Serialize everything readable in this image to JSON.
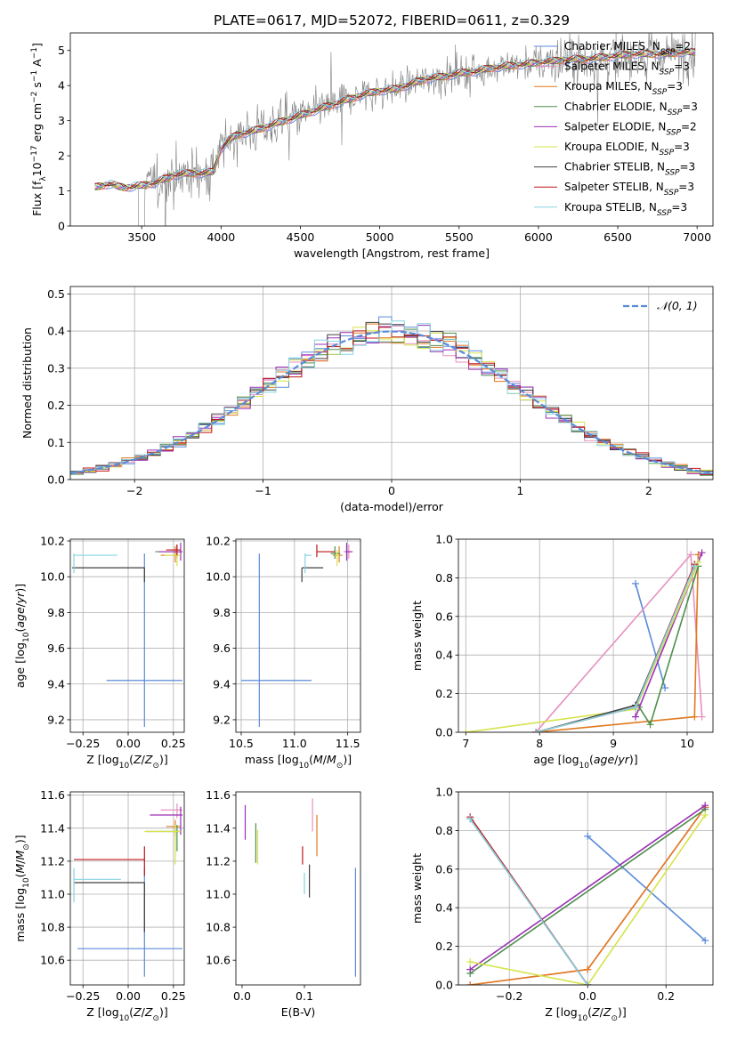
{
  "figure_title": "PLATE=0617, MJD=52072, FIBERID=0611, z=0.329",
  "colors": {
    "Chabrier MILES": "#5b8bd9",
    "Salpeter MILES": "#e88fbf",
    "Kroupa MILES": "#e07a1f",
    "Chabrier ELODIE": "#4e8f4b",
    "Salpeter ELODIE": "#9b2fb7",
    "Kroupa ELODIE": "#d6e34a",
    "Chabrier STELIB": "#404040",
    "Salpeter STELIB": "#c0161a",
    "Kroupa STELIB": "#86d3e0",
    "data": "#808080",
    "normal": "#5b8bd9"
  },
  "chart_data": [
    {
      "id": "spectrum",
      "type": "line",
      "title": "PLATE=0617, MJD=52072, FIBERID=0611, z=0.329",
      "xlabel": "wavelength [Angstrom, rest frame]",
      "ylabel": "Flux [f_λ 10^-17 erg cm^-2 s^-1 A^-1]",
      "xlim": [
        3050,
        7100
      ],
      "ylim": [
        0,
        5.5
      ],
      "xticks": [
        3500,
        4000,
        4500,
        5000,
        5500,
        6000,
        6500,
        7000
      ],
      "yticks": [
        0,
        1,
        2,
        3,
        4,
        5
      ],
      "legend_position": "upper right",
      "legend": [
        {
          "label": "Chabrier MILES, N",
          "sub": "SSP",
          "tail": "=2"
        },
        {
          "label": "Salpeter MILES, N",
          "sub": "SSP",
          "tail": "=3"
        },
        {
          "label": "Kroupa MILES, N",
          "sub": "SSP",
          "tail": "=3"
        },
        {
          "label": "Chabrier ELODIE, N",
          "sub": "SSP",
          "tail": "=3"
        },
        {
          "label": "Salpeter ELODIE, N",
          "sub": "SSP",
          "tail": "=2"
        },
        {
          "label": "Kroupa ELODIE, N",
          "sub": "SSP",
          "tail": "=3"
        },
        {
          "label": "Chabrier STELIB, N",
          "sub": "SSP",
          "tail": "=3"
        },
        {
          "label": "Salpeter STELIB, N",
          "sub": "SSP",
          "tail": "=3"
        },
        {
          "label": "Kroupa STELIB, N",
          "sub": "SSP",
          "tail": "=3"
        }
      ],
      "model_continuum": {
        "x": [
          3200,
          3250,
          3300,
          3350,
          3400,
          3500,
          3600,
          3700,
          3800,
          3900,
          3950,
          4000,
          4050,
          4100,
          4200,
          4300,
          4400,
          4500,
          4600,
          4700,
          4800,
          4900,
          5000,
          5100,
          5200,
          5300,
          5400,
          5500,
          5600,
          5700,
          5800,
          5900,
          6000,
          6100,
          6200,
          6300,
          6400,
          6500,
          6600,
          6700,
          6800,
          6900,
          7000
        ],
        "y": [
          1.1,
          1.15,
          1.2,
          1.12,
          1.1,
          1.15,
          1.25,
          1.45,
          1.5,
          1.5,
          1.55,
          2.2,
          2.45,
          2.6,
          2.7,
          2.85,
          3.0,
          3.15,
          3.3,
          3.45,
          3.6,
          3.75,
          3.85,
          3.9,
          4.05,
          4.2,
          4.25,
          4.35,
          4.4,
          4.5,
          4.55,
          4.6,
          4.65,
          4.7,
          4.75,
          4.75,
          4.8,
          4.85,
          4.9,
          4.9,
          4.9,
          4.95,
          4.95
        ]
      }
    },
    {
      "id": "residuals",
      "type": "histogram",
      "xlabel": "(data-model)/error",
      "ylabel": "Normed distribution",
      "xlim": [
        -2.5,
        2.5
      ],
      "ylim": [
        0,
        0.52
      ],
      "xticks": [
        -2,
        -1,
        0,
        1,
        2
      ],
      "yticks": [
        0.0,
        0.1,
        0.2,
        0.3,
        0.4,
        0.5
      ],
      "grid": true,
      "legend_position": "upper right",
      "normal_label": "𝒩(0, 1)",
      "bin_width": 0.1
    },
    {
      "id": "age_vs_Z",
      "type": "scatter",
      "xlabel": "Z [log10(Z/Z⊙)]",
      "ylabel": "age [log10(age/yr)]",
      "xlim": [
        -0.32,
        0.31
      ],
      "ylim": [
        9.13,
        10.21
      ],
      "xticks": [
        -0.25,
        0.0,
        0.25
      ],
      "yticks": [
        9.2,
        9.4,
        9.6,
        9.8,
        10.0,
        10.2
      ],
      "grid": true,
      "points": [
        {
          "model": "Chabrier MILES",
          "x": 0.09,
          "y": 9.42,
          "xerr": [
            0.21,
            0.21
          ],
          "yerr": [
            0.26,
            0.71
          ]
        },
        {
          "model": "Salpeter MILES",
          "x": 0.27,
          "y": 10.14,
          "xerr": [
            0.02,
            0.03
          ],
          "yerr": [
            0.04,
            0.04
          ]
        },
        {
          "model": "Kroupa MILES",
          "x": 0.26,
          "y": 10.12,
          "xerr": [
            0.08,
            0.02
          ],
          "yerr": [
            0.04,
            0.05
          ]
        },
        {
          "model": "Chabrier ELODIE",
          "x": 0.27,
          "y": 10.14,
          "xerr": [
            0.12,
            0.02
          ],
          "yerr": [
            0.03,
            0.04
          ]
        },
        {
          "model": "Salpeter ELODIE",
          "x": 0.29,
          "y": 10.14,
          "xerr": [
            0.12,
            0.01
          ],
          "yerr": [
            0.05,
            0.05
          ]
        },
        {
          "model": "Kroupa ELODIE",
          "x": 0.27,
          "y": 10.12,
          "xerr": [
            0.07,
            0.02
          ],
          "yerr": [
            0.06,
            0.03
          ]
        },
        {
          "model": "Chabrier STELIB",
          "x": 0.09,
          "y": 10.05,
          "xerr": [
            0.4,
            0.0
          ],
          "yerr": [
            0.08,
            0.0
          ]
        },
        {
          "model": "Salpeter STELIB",
          "x": 0.27,
          "y": 10.15,
          "xerr": [
            0.06,
            0.02
          ],
          "yerr": [
            0.03,
            0.03
          ]
        },
        {
          "model": "Kroupa STELIB",
          "x": -0.3,
          "y": 10.12,
          "xerr": [
            0.0,
            0.24
          ],
          "yerr": [
            0.1,
            0.01
          ]
        }
      ]
    },
    {
      "id": "age_vs_mass",
      "type": "scatter",
      "xlabel": "mass [log10(M/M⊙)]",
      "ylabel": "",
      "xlim": [
        10.45,
        11.62
      ],
      "ylim": [
        9.13,
        10.21
      ],
      "xticks": [
        10.5,
        11.0,
        11.5
      ],
      "yticks": [
        9.2,
        9.4,
        9.6,
        9.8,
        10.0,
        10.2
      ],
      "grid": true,
      "points": [
        {
          "model": "Chabrier MILES",
          "x": 10.67,
          "y": 9.42,
          "xerr": [
            0.17,
            0.49
          ],
          "yerr": [
            0.26,
            0.71
          ]
        },
        {
          "model": "Salpeter MILES",
          "x": 11.51,
          "y": 10.14,
          "xerr": [
            0.05,
            0.04
          ],
          "yerr": [
            0.04,
            0.04
          ]
        },
        {
          "model": "Kroupa MILES",
          "x": 11.42,
          "y": 10.12,
          "xerr": [
            0.06,
            0.03
          ],
          "yerr": [
            0.04,
            0.05
          ]
        },
        {
          "model": "Chabrier ELODIE",
          "x": 11.38,
          "y": 10.13,
          "xerr": [
            0.04,
            0.05
          ],
          "yerr": [
            0.03,
            0.04
          ]
        },
        {
          "model": "Salpeter ELODIE",
          "x": 11.49,
          "y": 10.14,
          "xerr": [
            0.01,
            0.05
          ],
          "yerr": [
            0.05,
            0.05
          ]
        },
        {
          "model": "Kroupa ELODIE",
          "x": 11.4,
          "y": 10.12,
          "xerr": [
            0.02,
            0.02
          ],
          "yerr": [
            0.06,
            0.03
          ]
        },
        {
          "model": "Chabrier STELIB",
          "x": 11.07,
          "y": 10.05,
          "xerr": [
            0.0,
            0.2
          ],
          "yerr": [
            0.08,
            0.0
          ]
        },
        {
          "model": "Salpeter STELIB",
          "x": 11.21,
          "y": 10.14,
          "xerr": [
            0.0,
            0.17
          ],
          "yerr": [
            0.03,
            0.04
          ]
        },
        {
          "model": "Kroupa STELIB",
          "x": 11.1,
          "y": 10.12,
          "xerr": [
            0.0,
            0.06
          ],
          "yerr": [
            0.1,
            0.01
          ]
        }
      ]
    },
    {
      "id": "weight_vs_age",
      "type": "line",
      "xlabel": "age [log10(age/yr)]",
      "ylabel": "mass weight",
      "xlim": [
        6.9,
        10.35
      ],
      "ylim": [
        0,
        1.0
      ],
      "xticks": [
        7,
        8,
        9,
        10
      ],
      "yticks": [
        0.0,
        0.2,
        0.4,
        0.6,
        0.8,
        1.0
      ],
      "grid": true,
      "series": [
        {
          "model": "Chabrier MILES",
          "x": [
            9.3,
            9.7
          ],
          "y": [
            0.77,
            0.23
          ]
        },
        {
          "model": "Salpeter MILES",
          "x": [
            7.95,
            10.05,
            10.2
          ],
          "y": [
            0.0,
            0.92,
            0.08
          ]
        },
        {
          "model": "Kroupa MILES",
          "x": [
            7.95,
            10.1,
            10.15
          ],
          "y": [
            0.0,
            0.08,
            0.92
          ]
        },
        {
          "model": "Chabrier ELODIE",
          "x": [
            9.35,
            9.5,
            10.15
          ],
          "y": [
            0.13,
            0.04,
            0.86
          ]
        },
        {
          "model": "Salpeter ELODIE",
          "x": [
            9.3,
            10.2
          ],
          "y": [
            0.08,
            0.93
          ]
        },
        {
          "model": "Kroupa ELODIE",
          "x": [
            7.0,
            9.3,
            10.15
          ],
          "y": [
            0.0,
            0.12,
            0.88
          ]
        },
        {
          "model": "Chabrier STELIB",
          "x": [
            7.95,
            9.3,
            10.1
          ],
          "y": [
            0.0,
            0.14,
            0.86
          ]
        },
        {
          "model": "Salpeter STELIB",
          "x": [
            7.95,
            9.3,
            10.1
          ],
          "y": [
            0.0,
            0.13,
            0.87
          ]
        },
        {
          "model": "Kroupa STELIB",
          "x": [
            7.95,
            9.3,
            10.1
          ],
          "y": [
            0.0,
            0.13,
            0.86
          ]
        }
      ]
    },
    {
      "id": "mass_vs_Z",
      "type": "scatter",
      "xlabel": "Z [log10(Z/Z⊙)]",
      "ylabel": "mass [log10(M/M⊙)]",
      "xlim": [
        -0.32,
        0.31
      ],
      "ylim": [
        10.45,
        11.62
      ],
      "xticks": [
        -0.25,
        0.0,
        0.25
      ],
      "yticks": [
        10.6,
        10.8,
        11.0,
        11.2,
        11.4,
        11.6
      ],
      "grid": true,
      "points": [
        {
          "model": "Chabrier MILES",
          "x": 0.09,
          "y": 10.67,
          "xerr": [
            0.37,
            0.21
          ],
          "yerr": [
            0.17,
            0.49
          ]
        },
        {
          "model": "Salpeter MILES",
          "x": 0.27,
          "y": 11.51,
          "xerr": [
            0.09,
            0.03
          ],
          "yerr": [
            0.05,
            0.04
          ]
        },
        {
          "model": "Kroupa MILES",
          "x": 0.26,
          "y": 11.41,
          "xerr": [
            0.05,
            0.03
          ],
          "yerr": [
            0.06,
            0.04
          ]
        },
        {
          "model": "Chabrier ELODIE",
          "x": 0.27,
          "y": 11.38,
          "xerr": [
            0.17,
            0.02
          ],
          "yerr": [
            0.12,
            0.04
          ]
        },
        {
          "model": "Salpeter ELODIE",
          "x": 0.29,
          "y": 11.48,
          "xerr": [
            0.17,
            0.01
          ],
          "yerr": [
            0.12,
            0.05
          ]
        },
        {
          "model": "Kroupa ELODIE",
          "x": 0.26,
          "y": 11.38,
          "xerr": [
            0.17,
            0.03
          ],
          "yerr": [
            0.2,
            0.04
          ]
        },
        {
          "model": "Chabrier STELIB",
          "x": 0.09,
          "y": 11.07,
          "xerr": [
            0.39,
            0.0
          ],
          "yerr": [
            0.3,
            0.0
          ]
        },
        {
          "model": "Salpeter STELIB",
          "x": 0.09,
          "y": 11.21,
          "xerr": [
            0.39,
            0.0
          ],
          "yerr": [
            0.1,
            0.08
          ]
        },
        {
          "model": "Kroupa STELIB",
          "x": -0.3,
          "y": 11.09,
          "xerr": [
            0.0,
            0.26
          ],
          "yerr": [
            0.14,
            0.07
          ]
        }
      ]
    },
    {
      "id": "mass_vs_EBV",
      "type": "scatter",
      "xlabel": "E(B-V)",
      "ylabel": "",
      "xlim": [
        -0.01,
        0.19
      ],
      "ylim": [
        10.45,
        11.62
      ],
      "xticks": [
        0.0,
        0.1
      ],
      "yticks": [
        10.6,
        10.8,
        11.0,
        11.2,
        11.4,
        11.6
      ],
      "grid": false,
      "points": [
        {
          "model": "Chabrier MILES",
          "x": 0.182,
          "y": 10.67,
          "yerr": [
            0.17,
            0.49
          ]
        },
        {
          "model": "Salpeter MILES",
          "x": 0.113,
          "y": 11.48,
          "yerr": [
            0.1,
            0.1
          ]
        },
        {
          "model": "Kroupa MILES",
          "x": 0.12,
          "y": 11.38,
          "yerr": [
            0.15,
            0.1
          ]
        },
        {
          "model": "Chabrier ELODIE",
          "x": 0.022,
          "y": 11.33,
          "yerr": [
            0.14,
            0.1
          ]
        },
        {
          "model": "Salpeter ELODIE",
          "x": 0.005,
          "y": 11.43,
          "yerr": [
            0.1,
            0.11
          ]
        },
        {
          "model": "Kroupa ELODIE",
          "x": 0.025,
          "y": 11.29,
          "yerr": [
            0.11,
            0.1
          ]
        },
        {
          "model": "Chabrier STELIB",
          "x": 0.108,
          "y": 11.08,
          "yerr": [
            0.1,
            0.1
          ]
        },
        {
          "model": "Salpeter STELIB",
          "x": 0.097,
          "y": 11.24,
          "yerr": [
            0.06,
            0.05
          ]
        },
        {
          "model": "Kroupa STELIB",
          "x": 0.1,
          "y": 11.08,
          "yerr": [
            0.08,
            0.05
          ]
        }
      ]
    },
    {
      "id": "weight_vs_Z",
      "type": "line",
      "xlabel": "Z [log10(Z/Z⊙)]",
      "ylabel": "mass weight",
      "xlim": [
        -0.33,
        0.32
      ],
      "ylim": [
        0,
        1.0
      ],
      "xticks": [
        -0.2,
        0.0,
        0.2
      ],
      "yticks": [
        0.0,
        0.2,
        0.4,
        0.6,
        0.8,
        1.0
      ],
      "grid": true,
      "series": [
        {
          "model": "Chabrier MILES",
          "x": [
            0.0,
            0.3
          ],
          "y": [
            0.77,
            0.23
          ]
        },
        {
          "model": "Salpeter MILES",
          "x": [
            -0.3,
            0.0,
            0.3
          ],
          "y": [
            0.0,
            0.08,
            0.92
          ]
        },
        {
          "model": "Kroupa MILES",
          "x": [
            -0.3,
            0.0,
            0.3
          ],
          "y": [
            0.0,
            0.08,
            0.92
          ]
        },
        {
          "model": "Chabrier ELODIE",
          "x": [
            -0.3,
            0.3
          ],
          "y": [
            0.06,
            0.91
          ]
        },
        {
          "model": "Salpeter ELODIE",
          "x": [
            -0.3,
            0.3
          ],
          "y": [
            0.08,
            0.93
          ]
        },
        {
          "model": "Kroupa ELODIE",
          "x": [
            -0.3,
            0.0,
            0.3
          ],
          "y": [
            0.12,
            0.0,
            0.88
          ]
        },
        {
          "model": "Chabrier STELIB",
          "x": [
            -0.3,
            0.0
          ],
          "y": [
            0.86,
            0.0
          ]
        },
        {
          "model": "Salpeter STELIB",
          "x": [
            -0.3,
            0.0
          ],
          "y": [
            0.87,
            0.0
          ]
        },
        {
          "model": "Kroupa STELIB",
          "x": [
            -0.3,
            0.0
          ],
          "y": [
            0.86,
            0.0
          ]
        }
      ]
    }
  ]
}
